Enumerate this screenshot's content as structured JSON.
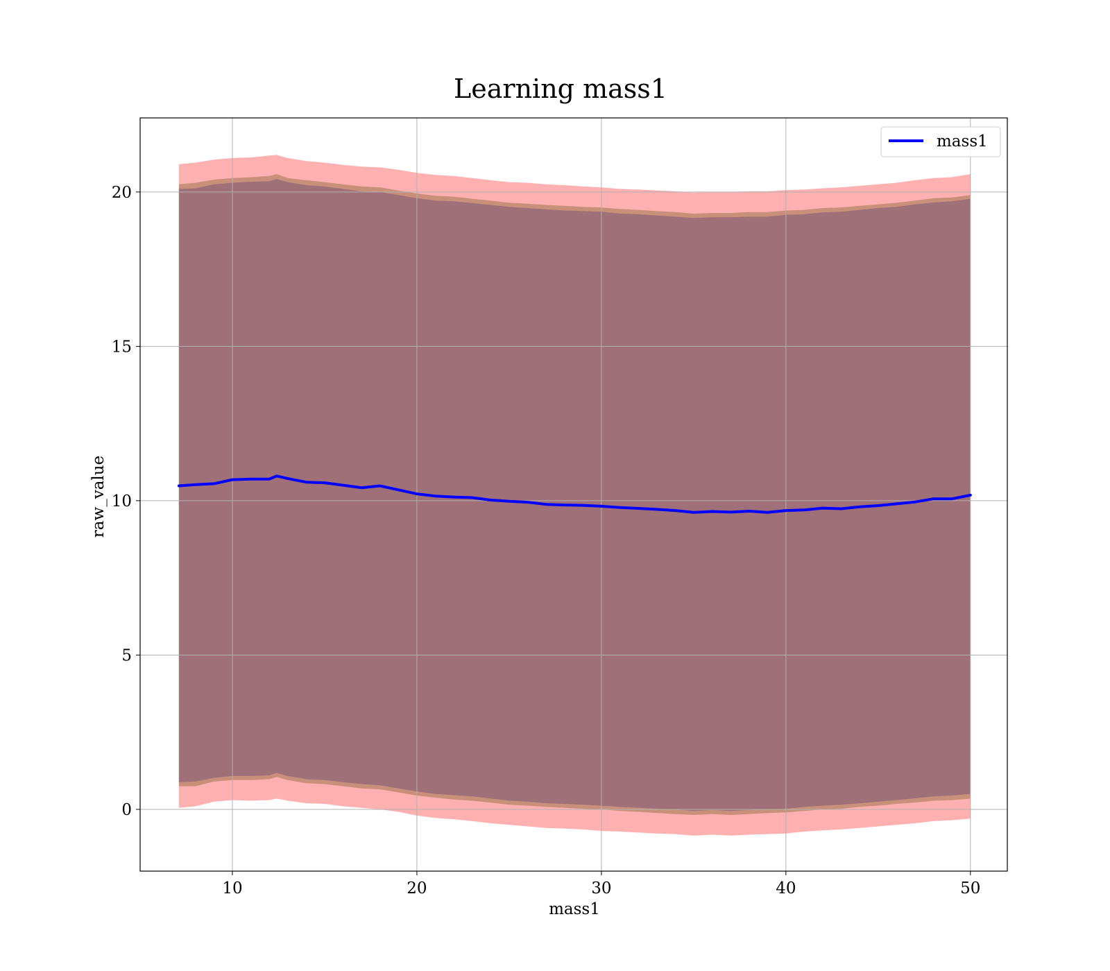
{
  "chart_data": {
    "type": "line",
    "title": "Learning mass1",
    "xlabel": "mass1",
    "ylabel": "raw_value",
    "xlim": [
      5,
      52
    ],
    "ylim": [
      -2,
      22.4
    ],
    "xticks": [
      10,
      20,
      30,
      40,
      50
    ],
    "yticks": [
      0,
      5,
      10,
      15,
      20
    ],
    "grid": true,
    "legend_position": "top-right",
    "colors": {
      "line": "#0000ff",
      "outer_band": "#ffb0b0",
      "middle_band": "#c8907a",
      "inner_band": "#a07078"
    },
    "series": [
      {
        "name": "mass1",
        "x": [
          7.1,
          8,
          9,
          10,
          11,
          12,
          12.4,
          13,
          14,
          15,
          16,
          17,
          18,
          19,
          20,
          21,
          22,
          23,
          24,
          25,
          26,
          27,
          28,
          29,
          30,
          31,
          32,
          33,
          34,
          35,
          36,
          37,
          38,
          39,
          40,
          41,
          42,
          43,
          44,
          45,
          46,
          47,
          48,
          49,
          50
        ],
        "y": [
          10.48,
          10.52,
          10.55,
          10.68,
          10.7,
          10.7,
          10.8,
          10.72,
          10.6,
          10.58,
          10.5,
          10.42,
          10.48,
          10.35,
          10.22,
          10.15,
          10.12,
          10.1,
          10.02,
          9.98,
          9.95,
          9.88,
          9.86,
          9.85,
          9.82,
          9.78,
          9.75,
          9.72,
          9.68,
          9.62,
          9.65,
          9.63,
          9.66,
          9.62,
          9.68,
          9.7,
          9.76,
          9.74,
          9.8,
          9.84,
          9.9,
          9.96,
          10.06,
          10.06,
          10.18
        ]
      }
    ],
    "bands": [
      {
        "role": "outer",
        "upper": [
          20.9,
          20.95,
          21.05,
          21.1,
          21.12,
          21.18,
          21.2,
          21.1,
          21.0,
          20.95,
          20.88,
          20.82,
          20.8,
          20.72,
          20.62,
          20.55,
          20.52,
          20.45,
          20.38,
          20.32,
          20.3,
          20.25,
          20.22,
          20.18,
          20.15,
          20.1,
          20.08,
          20.05,
          20.02,
          19.98,
          20.0,
          20.0,
          20.02,
          20.02,
          20.06,
          20.08,
          20.12,
          20.15,
          20.2,
          20.25,
          20.3,
          20.38,
          20.45,
          20.48,
          20.58
        ],
        "lower": [
          0.05,
          0.1,
          0.25,
          0.3,
          0.28,
          0.3,
          0.35,
          0.28,
          0.2,
          0.18,
          0.1,
          0.05,
          0.0,
          -0.08,
          -0.2,
          -0.28,
          -0.32,
          -0.38,
          -0.45,
          -0.5,
          -0.55,
          -0.6,
          -0.62,
          -0.65,
          -0.7,
          -0.72,
          -0.75,
          -0.78,
          -0.8,
          -0.85,
          -0.82,
          -0.85,
          -0.82,
          -0.8,
          -0.78,
          -0.72,
          -0.68,
          -0.65,
          -0.6,
          -0.55,
          -0.5,
          -0.45,
          -0.38,
          -0.35,
          -0.3
        ]
      },
      {
        "role": "middle",
        "upper": [
          20.25,
          20.3,
          20.4,
          20.45,
          20.48,
          20.52,
          20.58,
          20.45,
          20.38,
          20.32,
          20.25,
          20.18,
          20.15,
          20.05,
          19.95,
          19.88,
          19.85,
          19.78,
          19.72,
          19.65,
          19.62,
          19.58,
          19.55,
          19.52,
          19.5,
          19.45,
          19.42,
          19.38,
          19.35,
          19.3,
          19.32,
          19.32,
          19.35,
          19.35,
          19.4,
          19.42,
          19.48,
          19.5,
          19.55,
          19.6,
          19.65,
          19.72,
          19.8,
          19.82,
          19.9
        ],
        "lower": [
          0.75,
          0.75,
          0.9,
          0.95,
          0.95,
          0.98,
          1.05,
          0.95,
          0.85,
          0.82,
          0.75,
          0.68,
          0.65,
          0.55,
          0.45,
          0.38,
          0.32,
          0.28,
          0.22,
          0.15,
          0.12,
          0.08,
          0.05,
          0.02,
          0.0,
          -0.05,
          -0.08,
          -0.12,
          -0.15,
          -0.18,
          -0.15,
          -0.18,
          -0.15,
          -0.12,
          -0.1,
          -0.05,
          0.0,
          0.02,
          0.08,
          0.12,
          0.18,
          0.22,
          0.28,
          0.3,
          0.35
        ]
      },
      {
        "role": "inner",
        "upper": [
          20.1,
          20.12,
          20.25,
          20.3,
          20.33,
          20.35,
          20.42,
          20.32,
          20.22,
          20.18,
          20.1,
          20.02,
          20.0,
          19.9,
          19.8,
          19.72,
          19.7,
          19.64,
          19.58,
          19.52,
          19.48,
          19.44,
          19.4,
          19.38,
          19.36,
          19.3,
          19.28,
          19.24,
          19.2,
          19.16,
          19.18,
          19.18,
          19.2,
          19.2,
          19.26,
          19.28,
          19.34,
          19.36,
          19.42,
          19.48,
          19.52,
          19.6,
          19.66,
          19.7,
          19.78
        ],
        "lower": [
          0.88,
          0.9,
          1.02,
          1.08,
          1.08,
          1.1,
          1.18,
          1.08,
          0.98,
          0.95,
          0.88,
          0.82,
          0.78,
          0.68,
          0.58,
          0.5,
          0.46,
          0.42,
          0.35,
          0.28,
          0.25,
          0.2,
          0.18,
          0.15,
          0.12,
          0.08,
          0.05,
          0.02,
          0.0,
          -0.05,
          -0.02,
          -0.05,
          -0.02,
          0.0,
          0.02,
          0.08,
          0.12,
          0.15,
          0.2,
          0.25,
          0.3,
          0.36,
          0.42,
          0.45,
          0.5
        ]
      }
    ]
  }
}
